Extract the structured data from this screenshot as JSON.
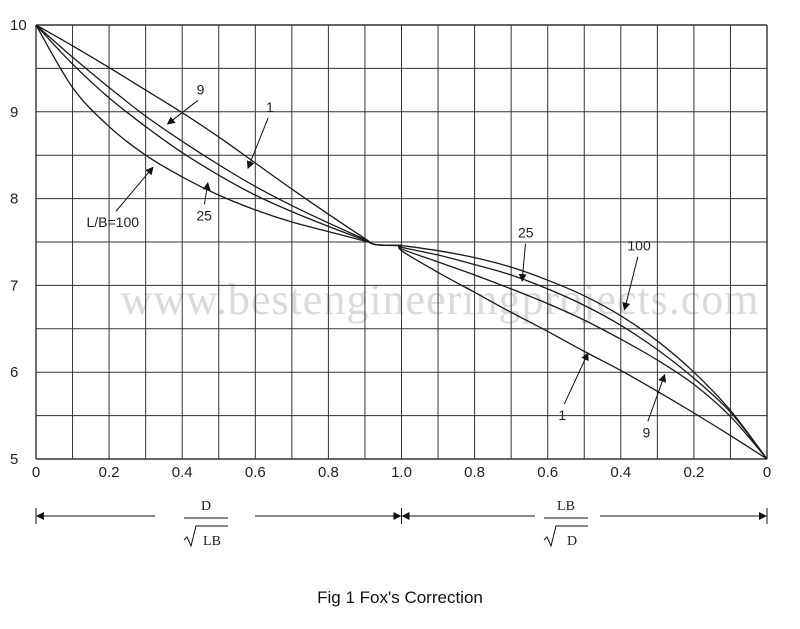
{
  "chart_data": {
    "type": "line",
    "title": "",
    "y_axis": {
      "ylim": [
        5,
        10
      ],
      "ticks": [
        5,
        6,
        7,
        8,
        9,
        10
      ],
      "tick_labels": [
        "5",
        "6",
        "7",
        "8",
        "9",
        "10"
      ]
    },
    "x_axis_left": {
      "label_numerator": "D",
      "label_denominator": "LB",
      "range": [
        0,
        1.0
      ],
      "ticks": [
        0,
        0.2,
        0.4,
        0.6,
        0.8,
        1.0
      ],
      "tick_labels": [
        "0",
        "0.2",
        "0.4",
        "0.6",
        "0.8",
        "1.0"
      ]
    },
    "x_axis_right": {
      "label_numerator": "LB",
      "label_denominator": "D",
      "range": [
        1.0,
        0
      ],
      "ticks": [
        0.8,
        0.6,
        0.4,
        0.2,
        0
      ],
      "tick_labels": [
        "0.8",
        "0.6",
        "0.4",
        "0.2",
        "0"
      ]
    },
    "grid": true,
    "series": [
      {
        "name": "1",
        "left": {
          "x": [
            0,
            0.1,
            0.2,
            0.3,
            0.4,
            0.5,
            0.6,
            0.7,
            0.8,
            0.9,
            0.93
          ],
          "y": [
            10,
            9.76,
            9.51,
            9.25,
            8.99,
            8.71,
            8.41,
            8.11,
            7.82,
            7.54,
            7.47
          ]
        },
        "right": {
          "x": [
            1.0,
            0.9,
            0.8,
            0.7,
            0.6,
            0.5,
            0.4,
            0.3,
            0.2,
            0.1,
            0
          ],
          "y": [
            7.4,
            7.15,
            6.92,
            6.69,
            6.47,
            6.24,
            6.02,
            5.78,
            5.53,
            5.27,
            5.0
          ]
        }
      },
      {
        "name": "9",
        "left": {
          "x": [
            0,
            0.1,
            0.2,
            0.3,
            0.4,
            0.5,
            0.6,
            0.7,
            0.8,
            0.9,
            0.93
          ],
          "y": [
            10,
            9.63,
            9.28,
            8.95,
            8.66,
            8.39,
            8.14,
            7.92,
            7.72,
            7.53,
            7.47
          ]
        },
        "right": {
          "x": [
            1.0,
            0.9,
            0.8,
            0.7,
            0.6,
            0.5,
            0.4,
            0.3,
            0.2,
            0.1,
            0
          ],
          "y": [
            7.42,
            7.27,
            7.12,
            6.96,
            6.79,
            6.6,
            6.38,
            6.14,
            5.86,
            5.49,
            5.0
          ]
        }
      },
      {
        "name": "25",
        "left": {
          "x": [
            0,
            0.1,
            0.2,
            0.3,
            0.4,
            0.5,
            0.6,
            0.7,
            0.8,
            0.9,
            0.93
          ],
          "y": [
            10,
            9.55,
            9.16,
            8.83,
            8.53,
            8.27,
            8.04,
            7.85,
            7.68,
            7.52,
            7.47
          ]
        },
        "right": {
          "x": [
            1.0,
            0.9,
            0.8,
            0.7,
            0.6,
            0.5,
            0.4,
            0.3,
            0.2,
            0.1,
            0
          ],
          "y": [
            7.44,
            7.35,
            7.24,
            7.12,
            6.96,
            6.77,
            6.54,
            6.26,
            5.93,
            5.54,
            5.0
          ]
        }
      },
      {
        "name": "100",
        "left": {
          "x": [
            0,
            0.1,
            0.2,
            0.3,
            0.4,
            0.5,
            0.6,
            0.7,
            0.8,
            0.9,
            0.93
          ],
          "y": [
            10,
            9.28,
            8.83,
            8.5,
            8.25,
            8.04,
            7.87,
            7.73,
            7.62,
            7.51,
            7.47
          ]
        },
        "right": {
          "x": [
            1.0,
            0.9,
            0.8,
            0.7,
            0.6,
            0.5,
            0.4,
            0.3,
            0.2,
            0.1,
            0
          ],
          "y": [
            7.46,
            7.4,
            7.32,
            7.21,
            7.06,
            6.88,
            6.65,
            6.36,
            6.0,
            5.56,
            5.0
          ]
        }
      }
    ],
    "annotations": [
      {
        "text": "9",
        "side": "left",
        "x": 0.45,
        "y": 9.2,
        "arrow_to": {
          "x": 0.36,
          "y": 8.86
        }
      },
      {
        "text": "1",
        "side": "left",
        "x": 0.64,
        "y": 9.0,
        "arrow_to": {
          "x": 0.58,
          "y": 8.35
        }
      },
      {
        "text": "L/B=100",
        "side": "left",
        "x": 0.21,
        "y": 7.67,
        "arrow_to": {
          "x": 0.32,
          "y": 8.36
        }
      },
      {
        "text": "25",
        "side": "left",
        "x": 0.46,
        "y": 7.75,
        "arrow_to": {
          "x": 0.47,
          "y": 8.18
        }
      },
      {
        "text": "25",
        "side": "right",
        "x": 0.66,
        "y": 7.55,
        "arrow_to": {
          "x": 0.67,
          "y": 7.05
        }
      },
      {
        "text": "100",
        "side": "right",
        "x": 0.35,
        "y": 7.4,
        "arrow_to": {
          "x": 0.39,
          "y": 6.72
        }
      },
      {
        "text": "1",
        "side": "right",
        "x": 0.56,
        "y": 5.45,
        "arrow_to": {
          "x": 0.49,
          "y": 6.22
        }
      },
      {
        "text": "9",
        "side": "right",
        "x": 0.33,
        "y": 5.25,
        "arrow_to": {
          "x": 0.28,
          "y": 5.97
        }
      }
    ]
  },
  "watermark": "www.bestengineeringprojects.com",
  "caption": "Fig 1 Fox's Correction"
}
